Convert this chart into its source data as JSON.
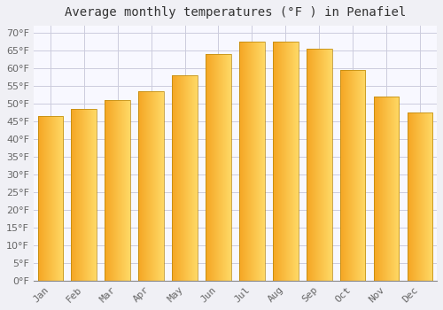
{
  "title": "Average monthly temperatures (°F ) in Penafiel",
  "months": [
    "Jan",
    "Feb",
    "Mar",
    "Apr",
    "May",
    "Jun",
    "Jul",
    "Aug",
    "Sep",
    "Oct",
    "Nov",
    "Dec"
  ],
  "values": [
    46.5,
    48.5,
    51.0,
    53.5,
    58.0,
    64.0,
    67.5,
    67.5,
    65.5,
    59.5,
    52.0,
    47.5
  ],
  "bar_color_left": "#F5A623",
  "bar_color_right": "#FFD966",
  "bar_edge_color": "#B8860B",
  "background_color": "#F0F0F5",
  "plot_bg_color": "#F8F8FF",
  "grid_color": "#CCCCDD",
  "ylim": [
    0,
    72
  ],
  "yticks": [
    0,
    5,
    10,
    15,
    20,
    25,
    30,
    35,
    40,
    45,
    50,
    55,
    60,
    65,
    70
  ],
  "title_fontsize": 10,
  "tick_fontsize": 8,
  "title_color": "#333333",
  "tick_color": "#666666",
  "bar_width": 0.75
}
